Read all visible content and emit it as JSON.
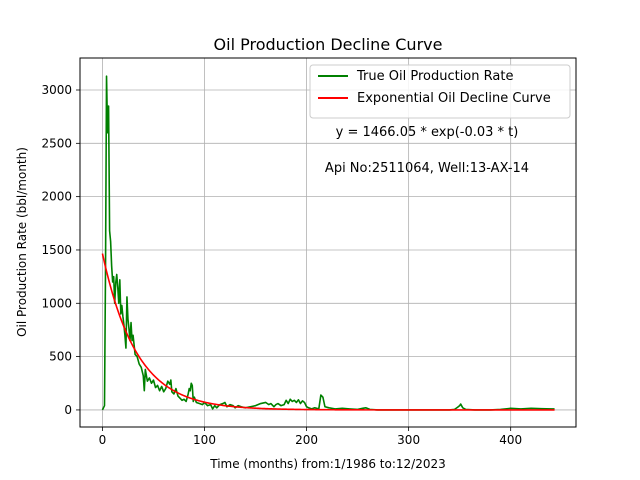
{
  "chart_data": {
    "type": "line",
    "title": "Oil Production Decline Curve",
    "xlabel": "Time (months) from:1/1986 to:12/2023",
    "ylabel": "Oil Production Rate (bbl/month)",
    "xlim": [
      -22,
      464
    ],
    "ylim": [
      -160,
      3300
    ],
    "xticks": [
      0,
      100,
      200,
      300,
      400
    ],
    "yticks": [
      0,
      500,
      1000,
      1500,
      2000,
      2500,
      3000
    ],
    "grid": true,
    "legend_position": "top-right",
    "annotations": [
      "y = 1466.05 * exp(-0.03 * t)",
      "Api No:2511064, Well:13-AX-14"
    ],
    "series": [
      {
        "name": "True Oil Production Rate",
        "color": "#008000",
        "points": [
          [
            0,
            0
          ],
          [
            2,
            40
          ],
          [
            3,
            1300
          ],
          [
            4,
            3130
          ],
          [
            5,
            2600
          ],
          [
            6,
            2850
          ],
          [
            7,
            1680
          ],
          [
            8,
            1580
          ],
          [
            9,
            1350
          ],
          [
            10,
            1200
          ],
          [
            11,
            1250
          ],
          [
            12,
            1000
          ],
          [
            13,
            1190
          ],
          [
            14,
            1270
          ],
          [
            15,
            1150
          ],
          [
            16,
            1000
          ],
          [
            17,
            1220
          ],
          [
            18,
            900
          ],
          [
            19,
            980
          ],
          [
            20,
            880
          ],
          [
            21,
            800
          ],
          [
            22,
            700
          ],
          [
            23,
            580
          ],
          [
            24,
            1060
          ],
          [
            25,
            850
          ],
          [
            26,
            760
          ],
          [
            27,
            650
          ],
          [
            28,
            820
          ],
          [
            29,
            650
          ],
          [
            30,
            700
          ],
          [
            32,
            520
          ],
          [
            34,
            500
          ],
          [
            36,
            430
          ],
          [
            38,
            400
          ],
          [
            40,
            320
          ],
          [
            41,
            180
          ],
          [
            42,
            380
          ],
          [
            44,
            270
          ],
          [
            46,
            300
          ],
          [
            48,
            250
          ],
          [
            50,
            280
          ],
          [
            52,
            210
          ],
          [
            54,
            230
          ],
          [
            56,
            180
          ],
          [
            58,
            220
          ],
          [
            60,
            170
          ],
          [
            62,
            200
          ],
          [
            64,
            270
          ],
          [
            66,
            240
          ],
          [
            67,
            280
          ],
          [
            68,
            170
          ],
          [
            70,
            150
          ],
          [
            72,
            200
          ],
          [
            74,
            130
          ],
          [
            76,
            110
          ],
          [
            78,
            90
          ],
          [
            80,
            100
          ],
          [
            82,
            80
          ],
          [
            84,
            150
          ],
          [
            85,
            200
          ],
          [
            86,
            180
          ],
          [
            87,
            250
          ],
          [
            88,
            230
          ],
          [
            89,
            80
          ],
          [
            90,
            120
          ],
          [
            92,
            70
          ],
          [
            95,
            60
          ],
          [
            98,
            50
          ],
          [
            100,
            70
          ],
          [
            103,
            40
          ],
          [
            106,
            50
          ],
          [
            108,
            10
          ],
          [
            110,
            40
          ],
          [
            112,
            20
          ],
          [
            115,
            50
          ],
          [
            118,
            60
          ],
          [
            120,
            70
          ],
          [
            122,
            30
          ],
          [
            125,
            50
          ],
          [
            128,
            40
          ],
          [
            130,
            20
          ],
          [
            133,
            40
          ],
          [
            136,
            30
          ],
          [
            140,
            20
          ],
          [
            145,
            30
          ],
          [
            150,
            40
          ],
          [
            155,
            60
          ],
          [
            160,
            70
          ],
          [
            163,
            50
          ],
          [
            165,
            60
          ],
          [
            168,
            30
          ],
          [
            170,
            50
          ],
          [
            172,
            60
          ],
          [
            175,
            40
          ],
          [
            178,
            50
          ],
          [
            180,
            90
          ],
          [
            182,
            60
          ],
          [
            184,
            100
          ],
          [
            186,
            80
          ],
          [
            188,
            90
          ],
          [
            190,
            70
          ],
          [
            192,
            95
          ],
          [
            194,
            60
          ],
          [
            196,
            85
          ],
          [
            198,
            70
          ],
          [
            200,
            30
          ],
          [
            202,
            20
          ],
          [
            205,
            10
          ],
          [
            208,
            20
          ],
          [
            212,
            10
          ],
          [
            214,
            140
          ],
          [
            216,
            120
          ],
          [
            218,
            30
          ],
          [
            222,
            20
          ],
          [
            228,
            10
          ],
          [
            235,
            15
          ],
          [
            242,
            10
          ],
          [
            250,
            5
          ],
          [
            255,
            15
          ],
          [
            258,
            20
          ],
          [
            262,
            5
          ],
          [
            270,
            0
          ],
          [
            280,
            0
          ],
          [
            290,
            0
          ],
          [
            300,
            0
          ],
          [
            310,
            0
          ],
          [
            320,
            0
          ],
          [
            330,
            0
          ],
          [
            340,
            0
          ],
          [
            345,
            5
          ],
          [
            348,
            25
          ],
          [
            350,
            40
          ],
          [
            351,
            55
          ],
          [
            353,
            20
          ],
          [
            356,
            5
          ],
          [
            365,
            0
          ],
          [
            380,
            0
          ],
          [
            390,
            5
          ],
          [
            395,
            10
          ],
          [
            400,
            15
          ],
          [
            410,
            10
          ],
          [
            420,
            15
          ],
          [
            430,
            12
          ],
          [
            440,
            10
          ],
          [
            443,
            10
          ]
        ]
      },
      {
        "name": "Exponential Oil Decline Curve",
        "color": "#ff0000",
        "model": {
          "type": "exponential",
          "a": 1466.05,
          "b": -0.03
        },
        "x_range": [
          0,
          443
        ]
      }
    ]
  }
}
